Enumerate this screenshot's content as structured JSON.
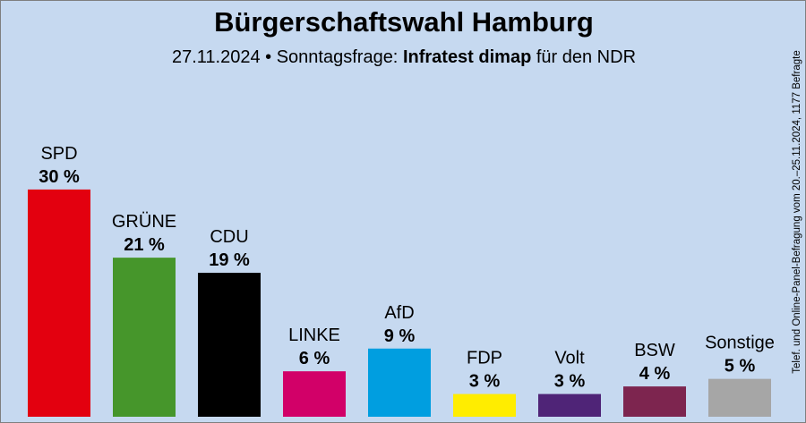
{
  "header": {
    "title": "Bürgerschaftswahl Hamburg",
    "subtitle_prefix": "27.11.2024 • Sonntagsfrage:",
    "subtitle_pollster": "Infratest dimap",
    "subtitle_suffix": "für den NDR"
  },
  "side_note": "Telef. und Online-Panel-Befragung vom 20.–25.11.2024, 1177 Befragte",
  "chart_data": {
    "type": "bar",
    "title": "Bürgerschaftswahl Hamburg",
    "subtitle": "27.11.2024 • Sonntagsfrage: Infratest dimap für den NDR",
    "xlabel": "",
    "ylabel": "",
    "ylim": [
      0,
      33
    ],
    "grid": false,
    "categories": [
      "SPD",
      "GRÜNE",
      "CDU",
      "LINKE",
      "AfD",
      "FDP",
      "Volt",
      "BSW",
      "Sonstige"
    ],
    "values": [
      30,
      21,
      19,
      6,
      9,
      3,
      3,
      4,
      5
    ],
    "value_labels": [
      "30 %",
      "21 %",
      "19 %",
      "6 %",
      "9 %",
      "3 %",
      "3 %",
      "4 %",
      "5 %"
    ],
    "colors": [
      "#e3000f",
      "#46962b",
      "#000000",
      "#d20068",
      "#009ee0",
      "#ffed00",
      "#4f2477",
      "#7d254f",
      "#a6a6a6"
    ]
  }
}
